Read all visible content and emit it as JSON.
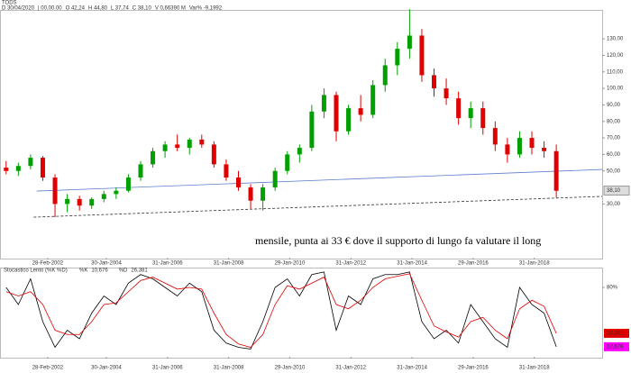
{
  "chart_data": [
    {
      "type": "candlestick",
      "title": "TODS",
      "header": {
        "date": "D 30/04/2020",
        "time": "| 00.00.00",
        "open": "O 42,24",
        "high": "H 44,80",
        "low": "L 37,74",
        "close": "C 38,10",
        "volume": "V 0,66390 M",
        "change": "Var% -9,1992"
      },
      "annotation": "mensile, punta ai 33 € dove il supporto di lungo fa valutare il long",
      "x": [
        2000.8,
        2001.2,
        2001.6,
        2002.0,
        2002.4,
        2002.8,
        2003.2,
        2003.6,
        2004.0,
        2004.4,
        2004.8,
        2005.2,
        2005.6,
        2006.0,
        2006.4,
        2006.8,
        2007.2,
        2007.6,
        2008.0,
        2008.4,
        2008.8,
        2009.2,
        2009.6,
        2010.0,
        2010.4,
        2010.8,
        2011.2,
        2011.6,
        2012.0,
        2012.4,
        2012.8,
        2013.2,
        2013.6,
        2014.0,
        2014.4,
        2014.8,
        2015.2,
        2015.6,
        2016.0,
        2016.4,
        2016.8,
        2017.2,
        2017.6,
        2018.0,
        2018.4,
        2018.8
      ],
      "open": [
        52,
        50,
        53,
        58,
        46,
        30,
        33,
        29,
        33,
        36,
        38,
        46,
        54,
        62,
        66,
        64,
        69,
        66,
        54,
        46,
        40,
        32,
        40,
        50,
        60,
        64,
        86,
        96,
        74,
        88,
        84,
        102,
        114,
        124,
        132,
        108,
        100,
        94,
        82,
        88,
        76,
        66,
        60,
        70,
        64,
        62
      ],
      "high": [
        56,
        55,
        60,
        59,
        48,
        36,
        35,
        34,
        38,
        40,
        48,
        56,
        64,
        68,
        72,
        70,
        72,
        68,
        57,
        50,
        42,
        42,
        52,
        62,
        66,
        90,
        100,
        98,
        90,
        96,
        105,
        118,
        128,
        148,
        136,
        112,
        106,
        98,
        92,
        92,
        80,
        70,
        74,
        74,
        68,
        66
      ],
      "low": [
        48,
        47,
        51,
        44,
        22,
        25,
        26,
        27,
        31,
        33,
        37,
        44,
        52,
        58,
        62,
        60,
        64,
        52,
        44,
        38,
        27,
        26,
        38,
        48,
        55,
        62,
        82,
        68,
        72,
        80,
        82,
        98,
        108,
        118,
        104,
        95,
        90,
        78,
        76,
        72,
        62,
        55,
        58,
        60,
        58,
        34
      ],
      "close": [
        50,
        53,
        58,
        46,
        30,
        33,
        29,
        33,
        36,
        38,
        46,
        54,
        62,
        66,
        64,
        69,
        66,
        54,
        46,
        40,
        32,
        40,
        50,
        60,
        64,
        86,
        96,
        74,
        88,
        84,
        102,
        114,
        124,
        132,
        108,
        100,
        94,
        82,
        88,
        76,
        66,
        60,
        70,
        64,
        62,
        38
      ],
      "up_color": "#00a000",
      "down_color": "#e00000",
      "lines": [
        {
          "x": [
            2001.8,
            2020.3
          ],
          "y": [
            37.8,
            50.9
          ],
          "color": "#5a7fd0",
          "dash": false
        },
        {
          "x": [
            2001.7,
            2020.3
          ],
          "y": [
            22,
            34.6
          ],
          "color": "#333333",
          "dash": true
        }
      ],
      "price_label": {
        "value": 38.1,
        "label": "38,10"
      },
      "xlim": [
        2000.6,
        2020.3
      ],
      "ylim": [
        -2,
        147
      ],
      "xticks": [
        {
          "value": 2002.16,
          "label": "28-Feb-2002"
        },
        {
          "value": 2004.08,
          "label": "30-Jan-2004"
        },
        {
          "value": 2006.08,
          "label": "31-Jan-2006"
        },
        {
          "value": 2008.08,
          "label": "31-Jan-2008"
        },
        {
          "value": 2010.08,
          "label": "29-Jan-2010"
        },
        {
          "value": 2012.08,
          "label": "31-Jan-2012"
        },
        {
          "value": 2014.08,
          "label": "31-Jan-2014"
        },
        {
          "value": 2016.08,
          "label": "29-Jan-2016"
        },
        {
          "value": 2018.08,
          "label": "31-Jan-2018"
        }
      ],
      "yticks": [
        {
          "value": 130,
          "label": "130,00"
        },
        {
          "value": 120,
          "label": "120,00"
        },
        {
          "value": 110,
          "label": "110,00"
        },
        {
          "value": 100,
          "label": "100,00"
        },
        {
          "value": 90,
          "label": "90,00"
        },
        {
          "value": 80,
          "label": "80,00"
        },
        {
          "value": 70,
          "label": "70,00"
        },
        {
          "value": 60,
          "label": "60,00"
        },
        {
          "value": 50,
          "label": "50,00"
        },
        {
          "value": 30,
          "label": "30,00"
        }
      ]
    },
    {
      "type": "line",
      "title": "Stocastico Lento (%K %D)",
      "x": [
        2000.8,
        2001.2,
        2001.6,
        2002.0,
        2002.4,
        2002.8,
        2003.2,
        2003.6,
        2004.0,
        2004.4,
        2004.8,
        2005.2,
        2005.6,
        2006.0,
        2006.4,
        2006.8,
        2007.2,
        2007.6,
        2008.0,
        2008.4,
        2008.8,
        2009.2,
        2009.6,
        2010.0,
        2010.4,
        2010.8,
        2011.2,
        2011.6,
        2012.0,
        2012.4,
        2012.8,
        2013.2,
        2013.6,
        2014.0,
        2014.4,
        2014.8,
        2015.2,
        2015.6,
        2016.0,
        2016.4,
        2016.8,
        2017.2,
        2017.6,
        2018.0,
        2018.4,
        2018.8
      ],
      "series": [
        {
          "name": "%K",
          "color": "#000000",
          "current_label": "10,676",
          "label_color": "#ff00ff",
          "values": [
            80,
            60,
            90,
            40,
            10,
            30,
            20,
            50,
            70,
            60,
            85,
            95,
            90,
            80,
            70,
            85,
            75,
            30,
            15,
            10,
            8,
            40,
            80,
            90,
            70,
            95,
            98,
            30,
            70,
            60,
            90,
            95,
            95,
            98,
            40,
            20,
            30,
            15,
            60,
            40,
            20,
            10,
            80,
            60,
            50,
            10.676
          ]
        },
        {
          "name": "%D",
          "color": "#e00000",
          "current_label": "26,381",
          "label_color": "#e00000",
          "values": [
            75,
            70,
            75,
            60,
            30,
            25,
            25,
            40,
            60,
            62,
            75,
            88,
            92,
            85,
            78,
            80,
            78,
            50,
            25,
            14,
            10,
            25,
            60,
            82,
            78,
            85,
            92,
            60,
            55,
            65,
            80,
            90,
            93,
            96,
            65,
            35,
            28,
            22,
            40,
            45,
            30,
            20,
            55,
            65,
            58,
            26.381
          ]
        }
      ],
      "xlim": [
        2000.6,
        2020.3
      ],
      "ylim": [
        0,
        100
      ],
      "xticks": [
        {
          "value": 2002.16,
          "label": "28-Feb-2002"
        },
        {
          "value": 2004.08,
          "label": "30-Jan-2004"
        },
        {
          "value": 2006.08,
          "label": "31-Jan-2006"
        },
        {
          "value": 2008.08,
          "label": "31-Jan-2008"
        },
        {
          "value": 2010.08,
          "label": "29-Jan-2010"
        },
        {
          "value": 2012.08,
          "label": "31-Jan-2012"
        },
        {
          "value": 2014.08,
          "label": "31-Jan-2014"
        },
        {
          "value": 2016.08,
          "label": "29-Jan-2016"
        },
        {
          "value": 2018.08,
          "label": "31-Jan-2018"
        }
      ],
      "yticks": [
        {
          "value": 80,
          "label": "80%"
        }
      ]
    }
  ]
}
